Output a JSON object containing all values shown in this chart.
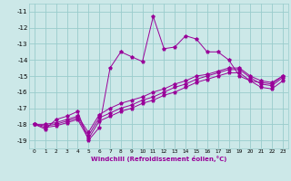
{
  "xlabel": "Windchill (Refroidissement éolien,°C)",
  "background_color": "#cce8e8",
  "grid_color": "#99cccc",
  "line_color": "#990099",
  "ylim": [
    -19.5,
    -10.5
  ],
  "xlim": [
    -0.5,
    23.5
  ],
  "yticks": [
    -19,
    -18,
    -17,
    -16,
    -15,
    -14,
    -13,
    -12,
    -11
  ],
  "xticks": [
    0,
    1,
    2,
    3,
    4,
    5,
    6,
    7,
    8,
    9,
    10,
    11,
    12,
    13,
    14,
    15,
    16,
    17,
    18,
    19,
    20,
    21,
    22,
    23
  ],
  "lines": [
    {
      "x": [
        0,
        1,
        2,
        3,
        4,
        5,
        6,
        7,
        8,
        9,
        10,
        11,
        12,
        13,
        14,
        15,
        16,
        17,
        18,
        19,
        20,
        21,
        22,
        23
      ],
      "y": [
        -18.0,
        -18.3,
        -17.7,
        -17.5,
        -17.2,
        -19.0,
        -18.2,
        -14.5,
        -13.5,
        -13.8,
        -14.1,
        -11.3,
        -13.3,
        -13.2,
        -12.5,
        -12.7,
        -13.5,
        -13.5,
        -14.0,
        -15.0,
        -15.3,
        -15.4,
        -15.5,
        -15.0
      ]
    },
    {
      "x": [
        0,
        1,
        2,
        3,
        4,
        5,
        6,
        7,
        8,
        9,
        10,
        11,
        12,
        13,
        14,
        15,
        16,
        17,
        18,
        19,
        20,
        21,
        22,
        23
      ],
      "y": [
        -18.0,
        -18.0,
        -17.9,
        -17.7,
        -17.5,
        -18.5,
        -17.4,
        -17.0,
        -16.7,
        -16.5,
        -16.3,
        -16.0,
        -15.8,
        -15.5,
        -15.3,
        -15.0,
        -14.9,
        -14.7,
        -14.5,
        -14.5,
        -15.0,
        -15.3,
        -15.4,
        -15.0
      ]
    },
    {
      "x": [
        0,
        1,
        2,
        3,
        4,
        5,
        6,
        7,
        8,
        9,
        10,
        11,
        12,
        13,
        14,
        15,
        16,
        17,
        18,
        19,
        20,
        21,
        22,
        23
      ],
      "y": [
        -18.0,
        -18.1,
        -18.0,
        -17.8,
        -17.6,
        -18.7,
        -17.6,
        -17.3,
        -17.0,
        -16.8,
        -16.5,
        -16.3,
        -16.0,
        -15.7,
        -15.5,
        -15.2,
        -15.0,
        -14.8,
        -14.6,
        -14.6,
        -15.1,
        -15.5,
        -15.6,
        -15.1
      ]
    },
    {
      "x": [
        0,
        1,
        2,
        3,
        4,
        5,
        6,
        7,
        8,
        9,
        10,
        11,
        12,
        13,
        14,
        15,
        16,
        17,
        18,
        19,
        20,
        21,
        22,
        23
      ],
      "y": [
        -18.0,
        -18.2,
        -18.1,
        -17.9,
        -17.7,
        -18.9,
        -17.8,
        -17.5,
        -17.2,
        -17.0,
        -16.7,
        -16.5,
        -16.2,
        -16.0,
        -15.7,
        -15.4,
        -15.2,
        -15.0,
        -14.8,
        -14.8,
        -15.3,
        -15.7,
        -15.8,
        -15.3
      ]
    }
  ]
}
